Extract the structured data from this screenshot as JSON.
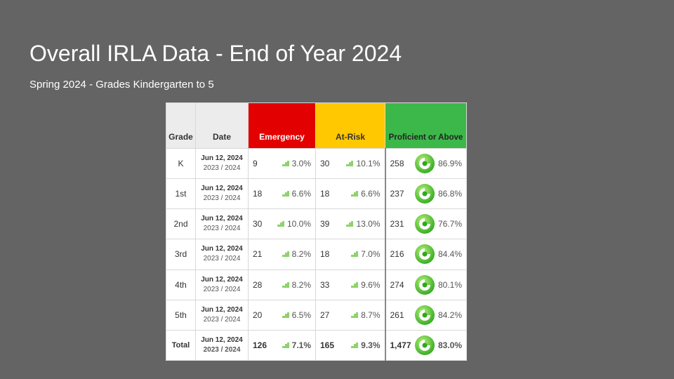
{
  "slide": {
    "title": "Overall IRLA Data - End of Year 2024",
    "subtitle": "Spring 2024 - Grades Kindergarten to 5"
  },
  "table": {
    "headers": {
      "grade": "Grade",
      "date": "Date",
      "emergency": "Emergency",
      "atrisk": "At-Risk",
      "proficient": "Proficient or Above"
    },
    "colors": {
      "emergency": "#e30000",
      "atrisk": "#ffc800",
      "proficient": "#3cb84a"
    },
    "rows": [
      {
        "grade": "K",
        "date": "Jun 12, 2024",
        "year": "2023 / 2024",
        "em_n": "9",
        "em_p": "3.0%",
        "ar_n": "30",
        "ar_p": "10.1%",
        "pr_n": "258",
        "pr_p": "86.9%"
      },
      {
        "grade": "1st",
        "date": "Jun 12, 2024",
        "year": "2023 / 2024",
        "em_n": "18",
        "em_p": "6.6%",
        "ar_n": "18",
        "ar_p": "6.6%",
        "pr_n": "237",
        "pr_p": "86.8%"
      },
      {
        "grade": "2nd",
        "date": "Jun 12, 2024",
        "year": "2023 / 2024",
        "em_n": "30",
        "em_p": "10.0%",
        "ar_n": "39",
        "ar_p": "13.0%",
        "pr_n": "231",
        "pr_p": "76.7%"
      },
      {
        "grade": "3rd",
        "date": "Jun 12, 2024",
        "year": "2023 / 2024",
        "em_n": "21",
        "em_p": "8.2%",
        "ar_n": "18",
        "ar_p": "7.0%",
        "pr_n": "216",
        "pr_p": "84.4%"
      },
      {
        "grade": "4th",
        "date": "Jun 12, 2024",
        "year": "2023 / 2024",
        "em_n": "28",
        "em_p": "8.2%",
        "ar_n": "33",
        "ar_p": "9.6%",
        "pr_n": "274",
        "pr_p": "80.1%"
      },
      {
        "grade": "5th",
        "date": "Jun 12, 2024",
        "year": "2023 / 2024",
        "em_n": "20",
        "em_p": "6.5%",
        "ar_n": "27",
        "ar_p": "8.7%",
        "pr_n": "261",
        "pr_p": "84.2%"
      },
      {
        "grade": "Total",
        "date": "Jun 12, 2024",
        "year": "2023 / 2024",
        "em_n": "126",
        "em_p": "7.1%",
        "ar_n": "165",
        "ar_p": "9.3%",
        "pr_n": "1,477",
        "pr_p": "83.0%"
      }
    ],
    "icons": {
      "small": "mini-chart-icon",
      "large": "green-ring-icon"
    }
  }
}
